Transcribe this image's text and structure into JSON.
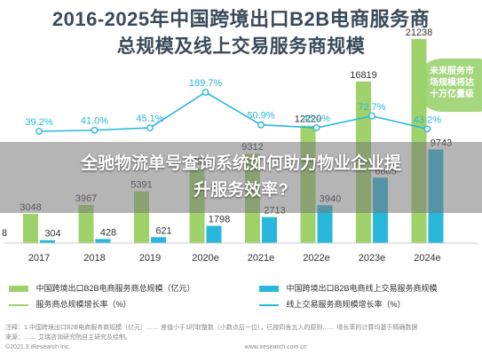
{
  "chart_data": {
    "type": "bar",
    "title": "2016-2025年中国跨境出口B2B电商服务商",
    "subtitle": "总规模及线上交易服务商规模",
    "categories": [
      "2017",
      "2018",
      "2019",
      "2020e",
      "2021e",
      "2022e",
      "2023e",
      "2024e"
    ],
    "series": [
      {
        "name": "中国跨境出口B2B电商服务商总规模（亿元）",
        "kind": "bar",
        "color": "#9fd26b",
        "values": [
          3048,
          3967,
          5391,
          7793,
          9312,
          12220,
          16819,
          21238
        ]
      },
      {
        "name": "中国跨境出口B2B电商线上交易服务商规模",
        "kind": "bar",
        "color": "#29b8dc",
        "values": [
          304,
          428,
          621,
          1798,
          2713,
          3940,
          6805,
          9743
        ]
      },
      {
        "name": "服务商总规模增长率（%）",
        "kind": "line",
        "color": "#9fd26b",
        "values": [
          null,
          null,
          null,
          null,
          null,
          null,
          null,
          null
        ]
      },
      {
        "name": "线上交易服务商规模增长率（%）",
        "kind": "line",
        "color": "#29b8dc",
        "values": [
          39.2,
          41.0,
          45.1,
          189.7,
          50.9,
          45.2,
          72.7,
          43.2
        ]
      }
    ],
    "rate_labels": [
      "39.2%",
      "41.0%",
      "45.1%",
      "189.7%",
      "50.9%",
      "45.2%",
      "72.7%",
      "43.2%"
    ],
    "left_edge_label": "8",
    "callout": [
      "未来服务市",
      "场规模将达",
      "十万亿量级"
    ],
    "legend_placement": "bottom",
    "grid": false
  },
  "overlay": {
    "line1": "全驰物流单号查询系统如何助力物业企业提",
    "line2": "升服务效率?"
  },
  "source_note": [
    "注释：1.中国跨境出口B2B电商服务商规模（亿元）…… 差值小于1时取整数（小数点后一位），已按四舍五入的原则…… 增长率的计算均基于精确数据",
    "来源：…… 艾瑞咨询研究院自主研究及绘制。",
    "©2021.3 iResearch Inc.                                                                                                     www.iresearch.com.cn"
  ]
}
